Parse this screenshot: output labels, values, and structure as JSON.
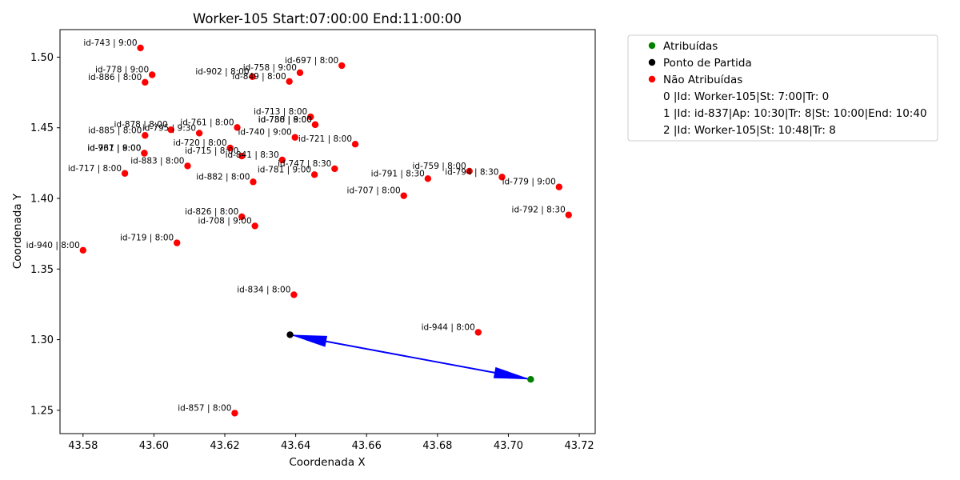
{
  "chart_data": {
    "type": "scatter",
    "title": "Worker-105 Start:07:00:00 End:11:00:00",
    "xlabel": "Coordenada X",
    "ylabel": "Coordenada Y",
    "xlim": [
      43.5735,
      43.7245
    ],
    "ylim": [
      1.2335,
      1.5195
    ],
    "xticks": [
      43.58,
      43.6,
      43.62,
      43.64,
      43.66,
      43.68,
      43.7,
      43.72
    ],
    "yticks": [
      1.25,
      1.3,
      1.35,
      1.4,
      1.45,
      1.5
    ],
    "grid": false,
    "legend_position": "outside-right",
    "colors": {
      "assigned": "#008000",
      "start": "#000000",
      "unassigned": "#ff0000",
      "route": "#0000ff"
    },
    "series": [
      {
        "name": "Atribuídas",
        "color": "#008000",
        "points": [
          {
            "x": 43.7063,
            "y": 1.2719
          }
        ]
      },
      {
        "name": "Ponto de Partida",
        "color": "#000000",
        "points": [
          {
            "x": 43.6384,
            "y": 1.3035
          }
        ]
      },
      {
        "name": "Não Atribuídas",
        "color": "#ff0000",
        "points": [
          {
            "x": 43.5962,
            "y": 1.5065,
            "label": "id-743 | 9:00"
          },
          {
            "x": 43.5995,
            "y": 1.4875,
            "label": "id-778 | 9:00"
          },
          {
            "x": 43.5975,
            "y": 1.4822,
            "label": "id-886 | 8:00"
          },
          {
            "x": 43.653,
            "y": 1.494,
            "label": "id-697 | 8:00"
          },
          {
            "x": 43.6412,
            "y": 1.489,
            "label": "id-758 | 9:00"
          },
          {
            "x": 43.6278,
            "y": 1.4862,
            "label": "id-902 | 8:00"
          },
          {
            "x": 43.6382,
            "y": 1.4828,
            "label": "id-849 | 8:00"
          },
          {
            "x": 43.6442,
            "y": 1.4577,
            "label": "id-713 | 8:00"
          },
          {
            "x": 43.6455,
            "y": 1.4522,
            "label": "id-788 | 9:00"
          },
          {
            "x": 43.6455,
            "y": 1.4522,
            "label": "id-730 | 8:00"
          },
          {
            "x": 43.5975,
            "y": 1.4446,
            "label": "id-885 | 8:00"
          },
          {
            "x": 43.6048,
            "y": 1.4486,
            "label": "id-878 | 8:00"
          },
          {
            "x": 43.6128,
            "y": 1.4462,
            "label": "id-795 | 9:30"
          },
          {
            "x": 43.6235,
            "y": 1.4502,
            "label": "id-761 | 8:00"
          },
          {
            "x": 43.6398,
            "y": 1.4432,
            "label": "id-740 | 9:00"
          },
          {
            "x": 43.6568,
            "y": 1.4384,
            "label": "id-721 | 8:00"
          },
          {
            "x": 43.6215,
            "y": 1.4357,
            "label": "id-720 | 8:00"
          },
          {
            "x": 43.5973,
            "y": 1.432,
            "label": "id-961 | 9:00"
          },
          {
            "x": 43.5973,
            "y": 1.432,
            "label": "id-737 | 8:00"
          },
          {
            "x": 43.6248,
            "y": 1.43,
            "label": "id-715 | 8:00"
          },
          {
            "x": 43.6362,
            "y": 1.4272,
            "label": "id-841 | 8:30"
          },
          {
            "x": 43.6095,
            "y": 1.423,
            "label": "id-883 | 8:00"
          },
          {
            "x": 43.651,
            "y": 1.421,
            "label": "id-747 | 8:30"
          },
          {
            "x": 43.5918,
            "y": 1.4177,
            "label": "id-717 | 8:00"
          },
          {
            "x": 43.6453,
            "y": 1.4168,
            "label": "id-781 | 9:00"
          },
          {
            "x": 43.628,
            "y": 1.4117,
            "label": "id-882 | 8:00"
          },
          {
            "x": 43.689,
            "y": 1.4193,
            "label": "id-759 | 8:00"
          },
          {
            "x": 43.6982,
            "y": 1.4151,
            "label": "id-794 | 8:30"
          },
          {
            "x": 43.6773,
            "y": 1.414,
            "label": "id-791 | 8:30"
          },
          {
            "x": 43.7143,
            "y": 1.4081,
            "label": "id-779 | 9:00"
          },
          {
            "x": 43.6705,
            "y": 1.4019,
            "label": "id-707 | 8:00"
          },
          {
            "x": 43.717,
            "y": 1.3883,
            "label": "id-792 | 8:30"
          },
          {
            "x": 43.6248,
            "y": 1.387,
            "label": "id-826 | 8:00"
          },
          {
            "x": 43.6285,
            "y": 1.3805,
            "label": "id-708 | 9:00"
          },
          {
            "x": 43.6065,
            "y": 1.3685,
            "label": "id-719 | 8:00"
          },
          {
            "x": 43.58,
            "y": 1.3633,
            "label": "id-940 | 8:00"
          },
          {
            "x": 43.6395,
            "y": 1.3318,
            "label": "id-834 | 8:00"
          },
          {
            "x": 43.6915,
            "y": 1.3052,
            "label": "id-944 | 8:00"
          },
          {
            "x": 43.6228,
            "y": 1.248,
            "label": "id-857 | 8:00"
          }
        ]
      }
    ],
    "route": [
      {
        "from": [
          43.6384,
          1.3035
        ],
        "to": [
          43.7063,
          1.2719
        ]
      },
      {
        "from": [
          43.7063,
          1.2719
        ],
        "to": [
          43.6384,
          1.3035
        ]
      }
    ],
    "legend_entries": [
      {
        "label": "Atribuídas",
        "marker": true,
        "color": "#008000"
      },
      {
        "label": "Ponto de Partida",
        "marker": true,
        "color": "#000000"
      },
      {
        "label": "Não Atribuídas",
        "marker": true,
        "color": "#ff0000"
      },
      {
        "label": "0 |Id: Worker-105|St: 7:00|Tr: 0",
        "marker": false
      },
      {
        "label": "1 |Id: id-837|Ap: 10:30|Tr: 8|St: 10:00|End: 10:40",
        "marker": false
      },
      {
        "label": "2 |Id: Worker-105|St: 10:48|Tr: 8",
        "marker": false
      }
    ]
  }
}
